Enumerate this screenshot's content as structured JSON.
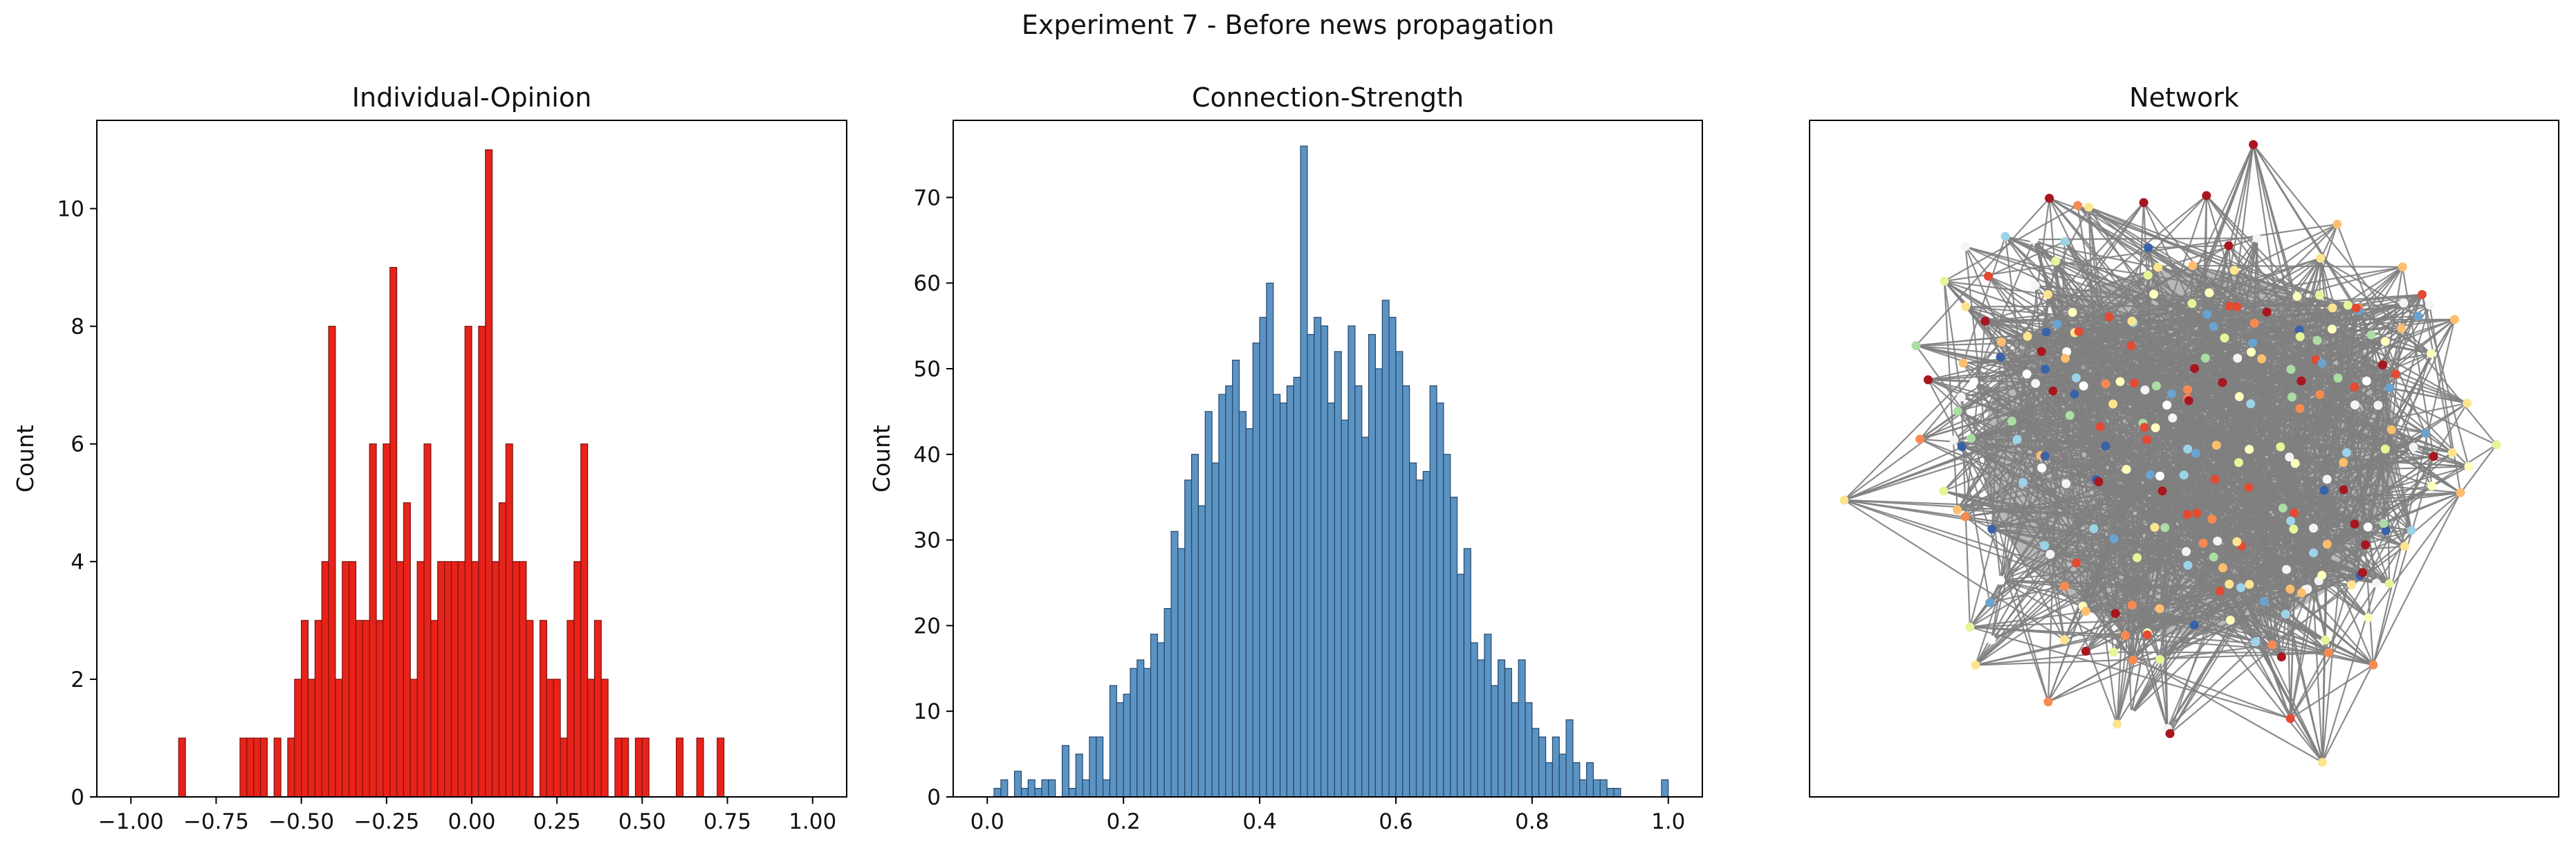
{
  "figure": {
    "suptitle": "Experiment 7 - Before news propagation"
  },
  "chart_data": [
    {
      "type": "bar",
      "title": "Individual-Opinion",
      "xlabel": "",
      "ylabel": "Count",
      "xlim": [
        -1.1,
        1.1
      ],
      "ylim": [
        0,
        11.5
      ],
      "xticks": [
        -1.0,
        -0.75,
        -0.5,
        -0.25,
        0.0,
        0.25,
        0.5,
        0.75,
        1.0
      ],
      "xtick_labels": [
        "−1.00",
        "−0.75",
        "−0.50",
        "−0.25",
        "0.00",
        "0.25",
        "0.50",
        "0.75",
        "1.00"
      ],
      "yticks": [
        0,
        2,
        4,
        6,
        8,
        10
      ],
      "ytick_labels": [
        "0",
        "2",
        "4",
        "6",
        "8",
        "10"
      ],
      "bin_start": -0.86,
      "bin_width": 0.02,
      "color": "#e8231a",
      "edge_color": "#7a1410",
      "values": [
        1,
        0,
        0,
        0,
        0,
        0,
        0,
        0,
        0,
        1,
        1,
        1,
        1,
        0,
        1,
        0,
        1,
        2,
        3,
        2,
        3,
        4,
        8,
        2,
        4,
        4,
        3,
        3,
        6,
        3,
        6,
        9,
        4,
        5,
        2,
        4,
        6,
        3,
        4,
        4,
        4,
        4,
        8,
        4,
        8,
        11,
        4,
        5,
        6,
        4,
        4,
        3,
        0,
        3,
        2,
        2,
        1,
        3,
        4,
        6,
        2,
        3,
        2,
        0,
        1,
        1,
        0,
        1,
        1,
        0,
        0,
        0,
        0,
        1,
        0,
        0,
        1,
        0,
        0,
        1
      ]
    },
    {
      "type": "bar",
      "title": "Connection-Strength",
      "xlabel": "",
      "ylabel": "Count",
      "xlim": [
        -0.05,
        1.05
      ],
      "ylim": [
        0,
        79
      ],
      "xticks": [
        0.0,
        0.2,
        0.4,
        0.6,
        0.8,
        1.0
      ],
      "xtick_labels": [
        "0.0",
        "0.2",
        "0.4",
        "0.6",
        "0.8",
        "1.0"
      ],
      "yticks": [
        0,
        10,
        20,
        30,
        40,
        50,
        60,
        70
      ],
      "ytick_labels": [
        "0",
        "10",
        "20",
        "30",
        "40",
        "50",
        "60",
        "70"
      ],
      "bin_start": 0.01,
      "bin_width": 0.01,
      "color": "#5b93c3",
      "edge_color": "#24476b",
      "values": [
        1,
        2,
        0,
        3,
        1,
        2,
        1,
        2,
        2,
        0,
        6,
        1,
        5,
        2,
        7,
        7,
        2,
        13,
        11,
        12,
        15,
        16,
        15,
        19,
        18,
        22,
        31,
        29,
        37,
        40,
        34,
        45,
        39,
        47,
        48,
        51,
        45,
        43,
        53,
        56,
        60,
        47,
        46,
        48,
        49,
        76,
        54,
        56,
        55,
        46,
        52,
        44,
        55,
        48,
        42,
        54,
        50,
        58,
        56,
        52,
        48,
        39,
        37,
        38,
        48,
        46,
        40,
        35,
        26,
        29,
        18,
        16,
        19,
        13,
        16,
        15,
        11,
        16,
        11,
        8,
        7,
        4,
        7,
        5,
        9,
        4,
        2,
        4,
        2,
        2,
        1,
        1,
        0,
        0,
        0,
        0,
        0,
        0,
        2
      ]
    }
  ],
  "network": {
    "title": "Network",
    "edge_color": "#808080",
    "palette": [
      "#a8161e",
      "#e34a33",
      "#f88a51",
      "#fdbe6e",
      "#fde58f",
      "#fefebd",
      "#e6f598",
      "#abdda4",
      "#9cd3e8",
      "#6aa3cf",
      "#3a62a9",
      "#ffffff",
      "#f4f4f4"
    ]
  }
}
